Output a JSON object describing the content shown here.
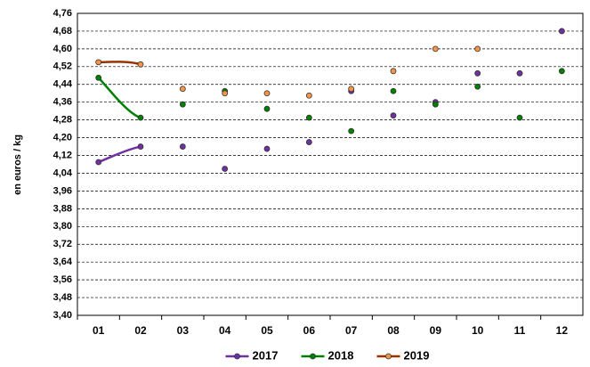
{
  "chart_data": {
    "type": "line",
    "y_label": "en euros / kg",
    "categories": [
      "01",
      "02",
      "03",
      "04",
      "05",
      "06",
      "07",
      "08",
      "09",
      "10",
      "11",
      "12"
    ],
    "series": [
      {
        "name": "2017",
        "color": "#7030a0",
        "values": [
          4.09,
          4.16,
          4.16,
          4.06,
          4.15,
          4.18,
          4.41,
          4.3,
          4.36,
          4.49,
          4.49,
          4.68
        ]
      },
      {
        "name": "2018",
        "color": "#008000",
        "values": [
          4.47,
          4.29,
          4.35,
          4.41,
          4.33,
          4.29,
          4.23,
          4.41,
          4.35,
          4.43,
          4.29,
          4.5
        ]
      },
      {
        "name": "2019",
        "color": "#993300",
        "marker_color": "#f79646",
        "values": [
          4.54,
          4.53,
          4.42,
          4.4,
          4.4,
          4.39,
          4.42,
          4.5,
          4.6,
          4.6,
          null,
          null
        ]
      }
    ],
    "ylim": [
      3.4,
      4.76
    ],
    "yticks": [
      {
        "value": 3.4,
        "label": "3,40"
      },
      {
        "value": 3.48,
        "label": "3,48"
      },
      {
        "value": 3.56,
        "label": "3,56"
      },
      {
        "value": 3.64,
        "label": "3,64"
      },
      {
        "value": 3.72,
        "label": "3,72"
      },
      {
        "value": 3.8,
        "label": "3,80"
      },
      {
        "value": 3.88,
        "label": "3,88"
      },
      {
        "value": 3.96,
        "label": "3,96"
      },
      {
        "value": 4.04,
        "label": "4,04"
      },
      {
        "value": 4.12,
        "label": "4,12"
      },
      {
        "value": 4.2,
        "label": "4,20"
      },
      {
        "value": 4.28,
        "label": "4,28"
      },
      {
        "value": 4.36,
        "label": "4,36"
      },
      {
        "value": 4.44,
        "label": "4,44"
      },
      {
        "value": 4.52,
        "label": "4,52"
      },
      {
        "value": 4.6,
        "label": "4,60"
      },
      {
        "value": 4.68,
        "label": "4,68"
      },
      {
        "value": 4.76,
        "label": "4,76"
      }
    ],
    "grid": true,
    "legend": "bottom"
  }
}
